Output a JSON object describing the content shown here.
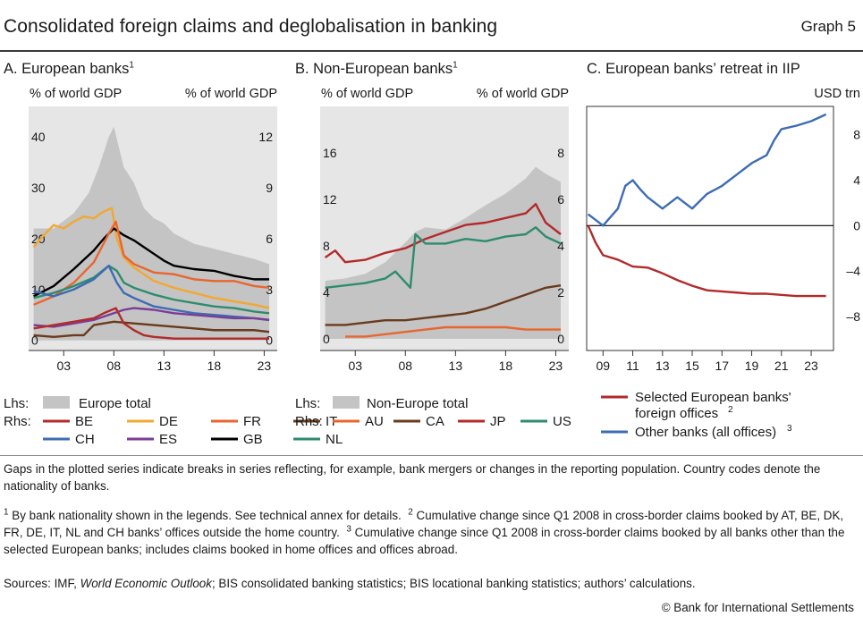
{
  "header": {
    "title": "Consolidated foreign claims and deglobalisation in banking",
    "graph_number": "Graph 5"
  },
  "panels": {
    "a": {
      "title": "A. European banks",
      "sup": "1",
      "lhs_unit": "% of world GDP",
      "rhs_unit": "% of world GDP"
    },
    "b": {
      "title": "B. Non-European banks",
      "sup": "1",
      "lhs_unit": "% of world GDP",
      "rhs_unit": "% of world GDP"
    },
    "c": {
      "title": "C. European banks’ retreat in IIP",
      "rhs_unit": "USD trn"
    }
  },
  "legends": {
    "a": {
      "lhs_label": "Lhs:",
      "rhs_label": "Rhs:",
      "area_label": "Europe total",
      "items": [
        {
          "code": "BE",
          "color": "#b22a2a"
        },
        {
          "code": "DE",
          "color": "#f2a830"
        },
        {
          "code": "FR",
          "color": "#e8662e"
        },
        {
          "code": "IT",
          "color": "#6b3a1c"
        },
        {
          "code": "CH",
          "color": "#3d6cb5"
        },
        {
          "code": "ES",
          "color": "#7b3d96"
        },
        {
          "code": "GB",
          "color": "#000000"
        },
        {
          "code": "NL",
          "color": "#2e8c6e"
        }
      ]
    },
    "b": {
      "lhs_label": "Lhs:",
      "rhs_label": "Rhs:",
      "area_label": "Non-Europe total",
      "items": [
        {
          "code": "AU",
          "color": "#e8662e"
        },
        {
          "code": "CA",
          "color": "#6b3a1c"
        },
        {
          "code": "JP",
          "color": "#b22a2a"
        },
        {
          "code": "US",
          "color": "#2e8c6e"
        }
      ]
    },
    "c": {
      "items": [
        {
          "label": "Selected European banks'",
          "label2": "foreign offices",
          "sup": "2",
          "color": "#b22a2a"
        },
        {
          "label": "Other banks (all offices)",
          "sup": "3",
          "color": "#3d6cb5"
        }
      ]
    }
  },
  "notes": {
    "gaps": "Gaps in the plotted series indicate breaks in series reflecting, for example, bank mergers or changes in the reporting population. Country codes denote the nationality of banks.",
    "fn1_sup": "1",
    "fn1": "By bank nationality shown in the legends. See technical annex for details.",
    "fn2_sup": "2",
    "fn2": "Cumulative change since Q1 2008 in cross-border claims booked by AT, BE, DK, FR, DE, IT, NL and CH banks’ offices outside the home country.",
    "fn3_sup": "3",
    "fn3": "Cumulative change since Q1 2008 in cross-border claims booked by all banks other than the selected European banks; includes claims booked in home offices and offices abroad.",
    "sources_prefix": "Sources: IMF,",
    "sources_italic": "World Economic Outlook",
    "sources_rest": "; BIS consolidated banking statistics; BIS locational banking statistics; authors’ calculations.",
    "copyright": "© Bank for International Settlements"
  },
  "chart_data": [
    {
      "type": "area",
      "panel": "A. European banks",
      "x_ticks": [
        "03",
        "08",
        "13",
        "18",
        "23"
      ],
      "xlim": [
        1999.5,
        2024.3
      ],
      "lhs_ticks": [
        "0",
        "10",
        "20",
        "30",
        "40"
      ],
      "lhs_ylim": [
        -2,
        46
      ],
      "rhs_ticks": [
        "0",
        "3",
        "6",
        "9",
        "12"
      ],
      "rhs_ylim": [
        -0.6,
        13.8
      ],
      "area": {
        "name": "Europe total",
        "axis": "lhs",
        "x": [
          2000,
          2002,
          2004,
          2005.5,
          2006.5,
          2007.5,
          2008,
          2008.5,
          2009,
          2010,
          2011,
          2012,
          2013,
          2014,
          2016,
          2018,
          2020,
          2022,
          2023.5
        ],
        "y": [
          22,
          22,
          25,
          29,
          34,
          40,
          42,
          38,
          34,
          31,
          26,
          24,
          23,
          21,
          19,
          18,
          17,
          16,
          15
        ]
      },
      "series": [
        {
          "name": "DE",
          "axis": "rhs",
          "color": "#f2a830",
          "x": [
            2000,
            2001,
            2002,
            2003,
            2004,
            2005,
            2006,
            2007,
            2007.8,
            2008.3,
            2009,
            2010,
            2011,
            2012,
            2013,
            2014,
            2016,
            2018,
            2020,
            2022,
            2023.5
          ],
          "y": [
            5.5,
            6.2,
            6.8,
            6.6,
            7.0,
            7.3,
            7.2,
            7.6,
            7.8,
            6.0,
            4.9,
            4.3,
            3.9,
            3.5,
            3.3,
            3.1,
            2.8,
            2.5,
            2.3,
            2.1,
            1.9
          ]
        },
        {
          "name": "GB",
          "axis": "rhs",
          "color": "#000000",
          "x": [
            2000,
            2002,
            2004,
            2006,
            2007,
            2008,
            2009,
            2010,
            2011,
            2012,
            2013,
            2014,
            2016,
            2018,
            2020,
            2022,
            2023.5
          ],
          "y": [
            2.6,
            3.2,
            4.2,
            5.3,
            6.0,
            6.6,
            6.2,
            5.9,
            5.5,
            5.1,
            4.7,
            4.4,
            4.2,
            4.1,
            3.8,
            3.6,
            3.6
          ]
        },
        {
          "name": "FR",
          "axis": "rhs",
          "color": "#e8662e",
          "x": [
            2000,
            2002,
            2004,
            2006,
            2007.5,
            2008.2,
            2009,
            2010,
            2012,
            2014,
            2016,
            2018,
            2020,
            2022,
            2023.5
          ],
          "y": [
            2.1,
            2.6,
            3.4,
            4.6,
            6.3,
            7.0,
            5.0,
            4.5,
            4.0,
            3.9,
            3.6,
            3.5,
            3.5,
            3.2,
            3.1
          ]
        },
        {
          "name": "NL",
          "axis": "rhs",
          "color": "#2e8c6e",
          "x": [
            2000,
            2002,
            2004,
            2006,
            2007.5,
            2008.3,
            2009,
            2010,
            2012,
            2014,
            2016,
            2018,
            2020,
            2022,
            2023.5
          ],
          "y": [
            2.5,
            2.8,
            3.2,
            3.7,
            4.4,
            4.1,
            3.4,
            3.1,
            2.7,
            2.4,
            2.2,
            2.0,
            1.9,
            1.7,
            1.6
          ]
        },
        {
          "name": "CH",
          "axis": "rhs",
          "color": "#3d6cb5",
          "x": [
            2000,
            2002,
            2004,
            2006,
            2007.5,
            2008.3,
            2009,
            2010,
            2012,
            2014,
            2016,
            2018,
            2020,
            2022,
            2023.5
          ],
          "y": [
            2.9,
            2.6,
            3.0,
            3.6,
            4.4,
            3.4,
            2.8,
            2.5,
            2.0,
            1.8,
            1.6,
            1.5,
            1.4,
            1.3,
            1.2
          ]
        },
        {
          "name": "ES",
          "axis": "rhs",
          "color": "#7b3d96",
          "x": [
            2000,
            2002,
            2004,
            2006,
            2008,
            2009,
            2010,
            2012,
            2014,
            2016,
            2018,
            2020,
            2022,
            2023.5
          ],
          "y": [
            0.9,
            0.8,
            1.0,
            1.2,
            1.6,
            1.8,
            1.9,
            1.8,
            1.6,
            1.5,
            1.4,
            1.3,
            1.3,
            1.2
          ]
        },
        {
          "name": "IT",
          "axis": "rhs",
          "color": "#6b3a1c",
          "x": [
            2000,
            2002,
            2004,
            2005,
            2006,
            2008,
            2010,
            2012,
            2014,
            2016,
            2018,
            2020,
            2022,
            2023.5
          ],
          "y": [
            0.3,
            0.2,
            0.3,
            0.3,
            0.9,
            1.1,
            1.0,
            0.9,
            0.8,
            0.7,
            0.6,
            0.6,
            0.6,
            0.5
          ]
        },
        {
          "name": "BE",
          "axis": "rhs",
          "color": "#b22a2a",
          "x": [
            2000,
            2002,
            2004,
            2006,
            2007,
            2008.2,
            2009,
            2010,
            2011,
            2012,
            2014,
            2016,
            2018,
            2020,
            2022,
            2023.5
          ],
          "y": [
            0.7,
            0.9,
            1.1,
            1.3,
            1.6,
            1.9,
            1.0,
            0.6,
            0.3,
            0.2,
            0.1,
            0.1,
            0.1,
            0.1,
            0.1,
            0.1
          ]
        }
      ]
    },
    {
      "type": "area",
      "panel": "B. Non-European banks",
      "x_ticks": [
        "03",
        "08",
        "13",
        "18",
        "23"
      ],
      "xlim": [
        1999.5,
        2024.3
      ],
      "lhs_ticks": [
        "0",
        "4",
        "8",
        "12",
        "16"
      ],
      "lhs_ylim": [
        -1,
        20
      ],
      "rhs_ticks": [
        "0",
        "2",
        "4",
        "6",
        "8"
      ],
      "rhs_ylim": [
        -0.5,
        10
      ],
      "area": {
        "name": "Non-Europe total",
        "axis": "lhs",
        "x": [
          2000,
          2002,
          2004,
          2006,
          2008,
          2009,
          2010,
          2012,
          2014,
          2016,
          2018,
          2020,
          2021,
          2022,
          2023.5
        ],
        "y": [
          5,
          5.2,
          5.6,
          6.6,
          8.3,
          9.2,
          9.6,
          9.4,
          10.4,
          11.5,
          12.5,
          13.8,
          14.8,
          14.2,
          13.5
        ]
      },
      "series": [
        {
          "name": "JP",
          "axis": "rhs",
          "color": "#b22a2a",
          "x": [
            2000,
            2001,
            2002,
            2004,
            2006,
            2008,
            2010,
            2012,
            2014,
            2016,
            2018,
            2020,
            2021,
            2022,
            2023.5
          ],
          "y": [
            3.5,
            3.8,
            3.3,
            3.4,
            3.7,
            3.9,
            4.3,
            4.6,
            4.9,
            5.0,
            5.2,
            5.4,
            5.8,
            5.0,
            4.5
          ]
        },
        {
          "name": "US",
          "axis": "rhs",
          "color": "#2e8c6e",
          "x": [
            2000,
            2002,
            2004,
            2006,
            2007,
            2008.5,
            2009,
            2010,
            2012,
            2014,
            2016,
            2018,
            2020,
            2021,
            2022,
            2023.5
          ],
          "y": [
            2.2,
            2.3,
            2.4,
            2.6,
            2.9,
            2.2,
            4.5,
            4.1,
            4.1,
            4.3,
            4.2,
            4.4,
            4.5,
            4.8,
            4.4,
            4.1
          ]
        },
        {
          "name": "CA",
          "axis": "rhs",
          "color": "#6b3a1c",
          "x": [
            2000,
            2002,
            2004,
            2006,
            2008,
            2010,
            2012,
            2014,
            2016,
            2018,
            2020,
            2022,
            2023.5
          ],
          "y": [
            0.6,
            0.6,
            0.7,
            0.8,
            0.8,
            0.9,
            1.0,
            1.1,
            1.3,
            1.6,
            1.9,
            2.2,
            2.3
          ]
        },
        {
          "name": "AU",
          "axis": "rhs",
          "color": "#e8662e",
          "x": [
            2002,
            2004,
            2006,
            2008,
            2010,
            2012,
            2014,
            2016,
            2018,
            2020,
            2022,
            2023.5
          ],
          "y": [
            0.1,
            0.1,
            0.2,
            0.3,
            0.4,
            0.5,
            0.5,
            0.5,
            0.5,
            0.4,
            0.4,
            0.4
          ]
        }
      ]
    },
    {
      "type": "line",
      "panel": "C. European banks’ retreat in IIP",
      "x_ticks": [
        "09",
        "11",
        "13",
        "15",
        "17",
        "19",
        "21",
        "23"
      ],
      "xlim": [
        2007.9,
        2024.5
      ],
      "rhs_ticks": [
        "–8",
        "–4",
        "0",
        "4",
        "8"
      ],
      "ylim": [
        -11,
        10.5
      ],
      "series": [
        {
          "name": "Selected European banks' foreign offices",
          "color": "#b22a2a",
          "x": [
            2008,
            2008.5,
            2009,
            2010,
            2011,
            2012,
            2013,
            2014,
            2015,
            2016,
            2017,
            2018,
            2019,
            2020,
            2021,
            2022,
            2023,
            2024
          ],
          "y": [
            0,
            -1.5,
            -2.6,
            -3.0,
            -3.6,
            -3.7,
            -4.2,
            -4.8,
            -5.3,
            -5.7,
            -5.8,
            -5.9,
            -6.0,
            -6.0,
            -6.1,
            -6.2,
            -6.2,
            -6.2
          ]
        },
        {
          "name": "Other banks (all offices)",
          "color": "#3d6cb5",
          "x": [
            2008,
            2008.5,
            2009,
            2010,
            2010.5,
            2011,
            2011.5,
            2012,
            2013,
            2014,
            2015,
            2016,
            2017,
            2018,
            2019,
            2020,
            2020.5,
            2021,
            2022,
            2023,
            2024
          ],
          "y": [
            1.0,
            0.5,
            0,
            1.5,
            3.5,
            4.0,
            3.2,
            2.5,
            1.5,
            2.5,
            1.5,
            2.8,
            3.5,
            4.5,
            5.5,
            6.2,
            7.5,
            8.5,
            8.8,
            9.2,
            9.8
          ]
        }
      ]
    }
  ]
}
